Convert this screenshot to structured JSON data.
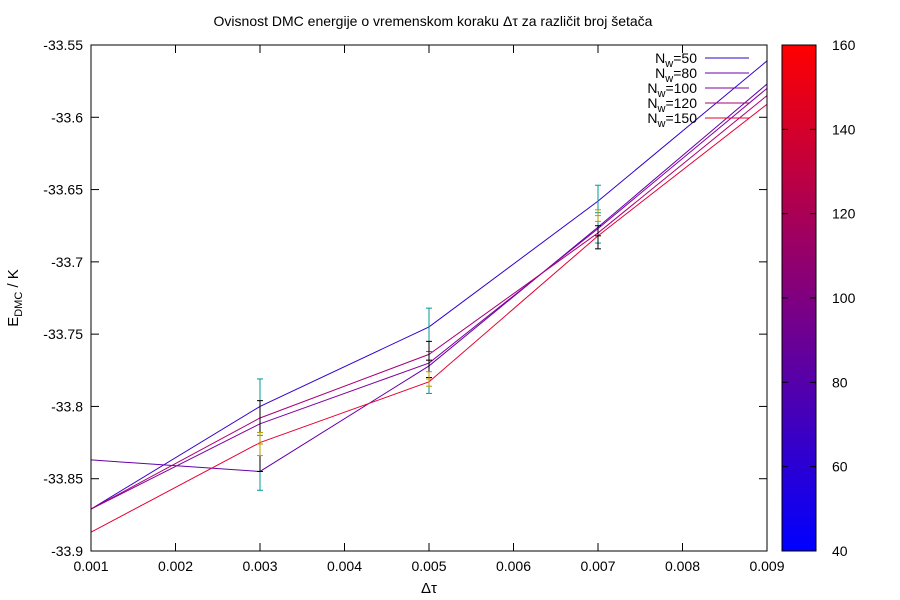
{
  "chart_data": {
    "type": "line",
    "title": "Ovisnost DMC energije o vremenskom koraku Δτ za različit broj šetača",
    "xlabel": "Δτ",
    "ylabel_main": "E",
    "ylabel_sub": "DMC",
    "ylabel_rest": " / K",
    "xlim": [
      0.001,
      0.009
    ],
    "ylim": [
      -33.9,
      -33.55
    ],
    "x_ticks": [
      "0.001",
      "0.002",
      "0.003",
      "0.004",
      "0.005",
      "0.006",
      "0.007",
      "0.008",
      "0.009"
    ],
    "y_ticks": [
      "-33.55",
      "-33.6",
      "-33.65",
      "-33.7",
      "-33.75",
      "-33.8",
      "-33.85",
      "-33.9"
    ],
    "legend_position": "top-right",
    "colorbar": {
      "min": 40,
      "max": 160,
      "ticks": [
        "40",
        "60",
        "80",
        "100",
        "120",
        "140",
        "160"
      ],
      "low_color": "#0000ff",
      "high_color": "#ff0000"
    },
    "series": [
      {
        "label_main": "N",
        "label_sub": "w",
        "label_rest": "=50",
        "color": "#3300cc",
        "x": [
          0.001,
          0.003,
          0.005,
          0.007,
          0.009
        ],
        "y": [
          -33.871,
          -33.8,
          -33.745,
          -33.658,
          -33.561
        ]
      },
      {
        "label_main": "N",
        "label_sub": "w",
        "label_rest": "=80",
        "color": "#6600aa",
        "x": [
          0.001,
          0.003,
          0.005,
          0.007,
          0.009
        ],
        "y": [
          -33.837,
          -33.845,
          -33.772,
          -33.676,
          -33.577
        ]
      },
      {
        "label_main": "N",
        "label_sub": "w",
        "label_rest": "=100",
        "color": "#8000a0",
        "x": [
          0.001,
          0.003,
          0.005,
          0.007,
          0.009
        ],
        "y": [
          -33.871,
          -33.812,
          -33.77,
          -33.677,
          -33.58
        ]
      },
      {
        "label_main": "N",
        "label_sub": "w",
        "label_rest": "=120",
        "color": "#aa0077",
        "x": [
          0.001,
          0.003,
          0.005,
          0.007,
          0.009
        ],
        "y": [
          -33.871,
          -33.808,
          -33.764,
          -33.68,
          -33.585
        ]
      },
      {
        "label_main": "N",
        "label_sub": "w",
        "label_rest": "=150",
        "color": "#e60033",
        "x": [
          0.001,
          0.003,
          0.005,
          0.007,
          0.009
        ],
        "y": [
          -33.887,
          -33.825,
          -33.783,
          -33.682,
          -33.591
        ]
      }
    ],
    "errorbars": [
      {
        "color": "#009999",
        "points": [
          {
            "x": 0.003,
            "y": -33.82,
            "lo": -33.858,
            "hi": -33.781
          },
          {
            "x": 0.005,
            "y": -33.762,
            "lo": -33.791,
            "hi": -33.732
          },
          {
            "x": 0.007,
            "y": -33.666,
            "lo": -33.687,
            "hi": -33.647
          }
        ]
      },
      {
        "color": "#000000",
        "points": [
          {
            "x": 0.003,
            "y": -33.826,
            "lo": -33.845,
            "hi": -33.796
          },
          {
            "x": 0.005,
            "y": -33.768,
            "lo": -33.78,
            "hi": -33.755
          },
          {
            "x": 0.007,
            "y": -33.682,
            "lo": -33.691,
            "hi": -33.675
          }
        ]
      },
      {
        "color": "#bb9900",
        "points": [
          {
            "x": 0.003,
            "y": -33.826,
            "lo": -33.834,
            "hi": -33.818
          },
          {
            "x": 0.005,
            "y": -33.781,
            "lo": -33.786,
            "hi": -33.776
          },
          {
            "x": 0.007,
            "y": -33.668,
            "lo": -33.672,
            "hi": -33.664
          }
        ]
      }
    ]
  }
}
